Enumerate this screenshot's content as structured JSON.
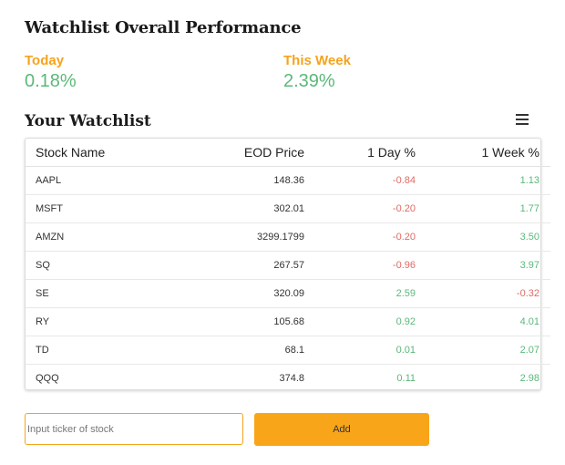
{
  "page": {
    "title": "Watchlist Overall Performance"
  },
  "performance": {
    "today_label": "Today",
    "today_value": "0.18%",
    "week_label": "This Week",
    "week_value": "2.39%"
  },
  "watchlist": {
    "title": "Your Watchlist",
    "menu_icon": "hamburger-menu-icon",
    "columns": [
      "Stock Name",
      "EOD Price",
      "1 Day %",
      "1 Week %"
    ],
    "rows": [
      {
        "name": "AAPL",
        "price": "148.36",
        "day": "-0.84",
        "week": "1.13"
      },
      {
        "name": "MSFT",
        "price": "302.01",
        "day": "-0.20",
        "week": "1.77"
      },
      {
        "name": "AMZN",
        "price": "3299.1799",
        "day": "-0.20",
        "week": "3.50"
      },
      {
        "name": "SQ",
        "price": "267.57",
        "day": "-0.96",
        "week": "3.97"
      },
      {
        "name": "SE",
        "price": "320.09",
        "day": "2.59",
        "week": "-0.32"
      },
      {
        "name": "RY",
        "price": "105.68",
        "day": "0.92",
        "week": "4.01"
      },
      {
        "name": "TD",
        "price": "68.1",
        "day": "0.01",
        "week": "2.07"
      },
      {
        "name": "QQQ",
        "price": "374.8",
        "day": "0.11",
        "week": "2.98"
      }
    ]
  },
  "add_form": {
    "input_placeholder": "Input ticker of stock",
    "input_value": "",
    "add_label": "Add"
  },
  "colors": {
    "accent": "#f9a51a",
    "positive": "#5cb87a",
    "negative": "#e06a63"
  }
}
